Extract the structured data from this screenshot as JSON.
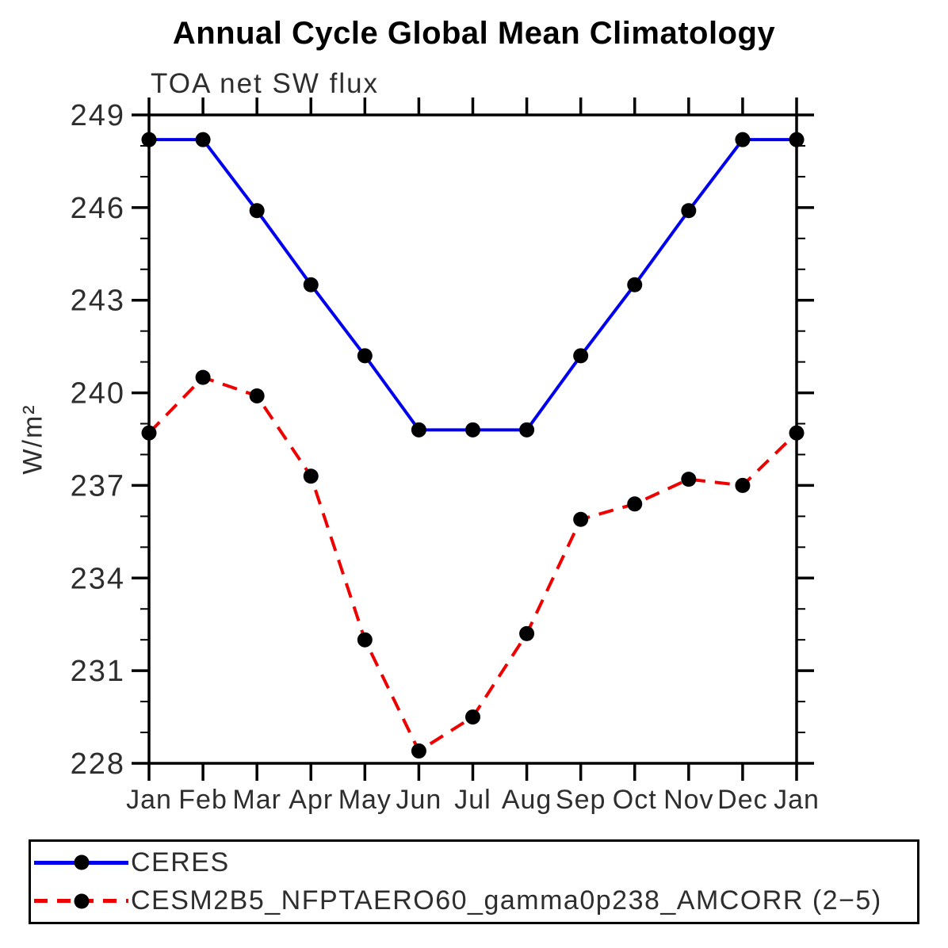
{
  "title": "Annual Cycle Global Mean Climatology",
  "subtitle": "TOA net SW flux",
  "colors": {
    "ceres_line": "#0000ee",
    "model_line": "#ee0000",
    "marker": "#000000",
    "axis": "#000000",
    "tick_text": "#2e2e2e"
  },
  "chart_data": {
    "type": "line",
    "title": "Annual Cycle Global Mean Climatology",
    "subtitle": "TOA net SW flux",
    "xlabel": "",
    "ylabel": "W/m²",
    "categories": [
      "Jan",
      "Feb",
      "Mar",
      "Apr",
      "May",
      "Jun",
      "Jul",
      "Aug",
      "Sep",
      "Oct",
      "Nov",
      "Dec",
      "Jan"
    ],
    "ylim": [
      228,
      249
    ],
    "yticks_major": [
      228,
      231,
      234,
      237,
      240,
      243,
      246,
      249
    ],
    "ytick_minor_step": 1,
    "grid": false,
    "legend_position": "bottom",
    "series": [
      {
        "name": "CERES",
        "color": "#0000ee",
        "style": "solid",
        "marker": "circle",
        "values": [
          248.2,
          248.2,
          245.9,
          243.5,
          241.2,
          238.8,
          238.8,
          238.8,
          241.2,
          243.5,
          245.9,
          248.2,
          248.2
        ]
      },
      {
        "name": "CESM2B5_NFPTAERO60_gamma0p238_AMCORR (2−5)",
        "color": "#ee0000",
        "style": "dashed",
        "marker": "circle",
        "values": [
          238.7,
          240.5,
          239.9,
          237.3,
          232.0,
          228.4,
          229.5,
          232.2,
          235.9,
          236.4,
          237.2,
          237.0,
          238.7
        ]
      }
    ]
  }
}
